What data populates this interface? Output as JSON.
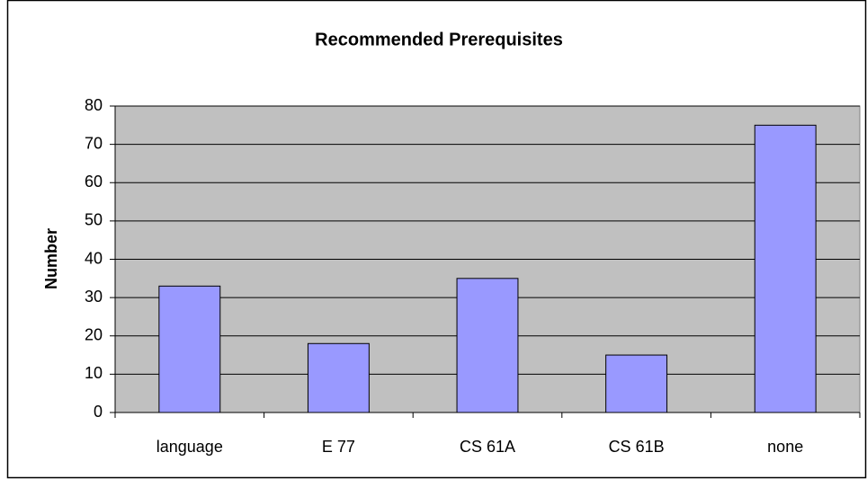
{
  "chart_data": {
    "type": "bar",
    "title": "Recommended Prerequisites",
    "y_label": "Number",
    "categories": [
      "language",
      "E 77",
      "CS 61A",
      "CS 61B",
      "none"
    ],
    "values": [
      33,
      18,
      35,
      15,
      75
    ],
    "color": "#9999ff",
    "ylim": [
      0,
      80
    ],
    "yticks": [
      0,
      10,
      20,
      30,
      40,
      50,
      60,
      70,
      80
    ],
    "grid": true
  }
}
